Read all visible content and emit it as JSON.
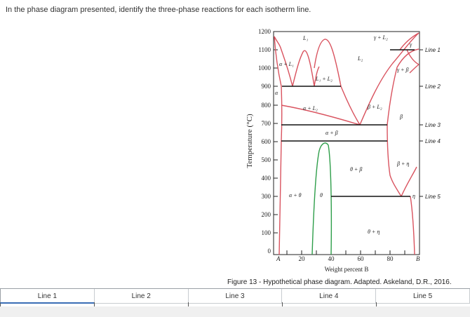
{
  "question": "In the phase diagram presented, identify the three-phase reactions for each isotherm line.",
  "axes": {
    "y_label": "Temperature (°C)",
    "y_ticks": [
      "1200",
      "1100",
      "1000",
      "900",
      "800",
      "700",
      "600",
      "500",
      "400",
      "300",
      "200",
      "100",
      "0"
    ],
    "x_ticks": [
      "A",
      "20",
      "40",
      "60",
      "80",
      "B"
    ],
    "x_label": "Weight percent B"
  },
  "phase_labels": {
    "L1": "L₁",
    "L2": "L₂",
    "gamma_L2": "γ + L₂",
    "gamma": "γ",
    "gamma_beta": "γ + β",
    "alpha_L1": "α + L₁",
    "L1_L2": "L₁ + L₂",
    "alpha": "α",
    "alpha_L2": "α + L₂",
    "beta_L2": "β + L₂",
    "beta": "β",
    "alpha_beta": "α + β",
    "theta_beta": "θ + β",
    "beta_eta": "β + η",
    "alpha_theta": "α + θ",
    "theta": "θ",
    "eta": "η",
    "theta_eta": "θ + η"
  },
  "line_labels": [
    "Line 1",
    "Line 2",
    "Line 3",
    "Line 4",
    "Line 5"
  ],
  "caption": "Figure 13 - Hypothetical phase diagram.  Adapted. Askeland, D.R., 2016.",
  "answer_columns": [
    "Line 1",
    "Line 2",
    "Line 3",
    "Line 4",
    "Line 5"
  ],
  "colors": {
    "phase_boundary": "#d9535f",
    "alpha_theta_boundary": "#2e9e4a",
    "isotherm": "#111111"
  }
}
